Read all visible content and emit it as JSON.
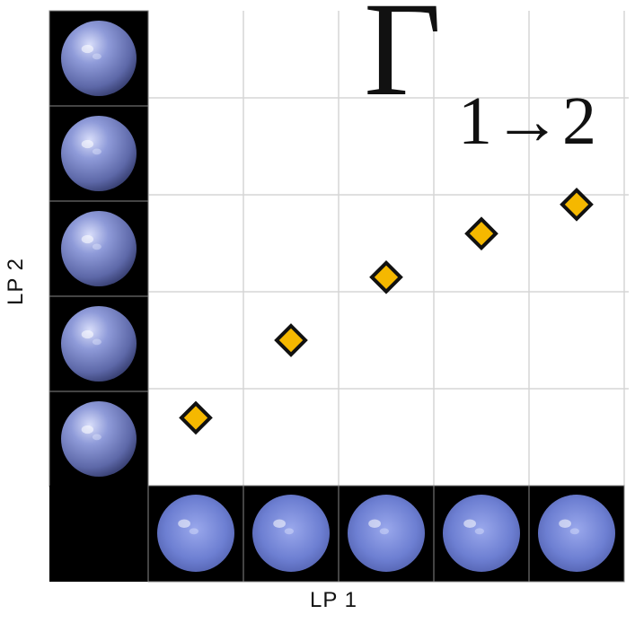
{
  "title": {
    "symbol": "Γ",
    "subscript": "1→2"
  },
  "chart_data": {
    "type": "scatter",
    "xlabel": "LP 1",
    "ylabel": "LP 2",
    "x": [
      1,
      2,
      3,
      4,
      5
    ],
    "y": [
      0.7,
      1.5,
      2.15,
      2.6,
      2.9
    ],
    "xlim": [
      0.5,
      5.5
    ],
    "ylim": [
      0,
      5
    ],
    "grid": true,
    "x_tick_images": [
      "sphere",
      "sphere",
      "sphere",
      "sphere",
      "sphere"
    ],
    "y_tick_images": [
      "sphere",
      "sphere",
      "sphere",
      "sphere",
      "sphere"
    ],
    "marker": "diamond",
    "marker_color": "#F5B800",
    "marker_edge_color": "#111111"
  },
  "colors": {
    "tile_bg": "#000000",
    "sphere": "#7b8bd6",
    "grid": "#d6d6d6"
  }
}
